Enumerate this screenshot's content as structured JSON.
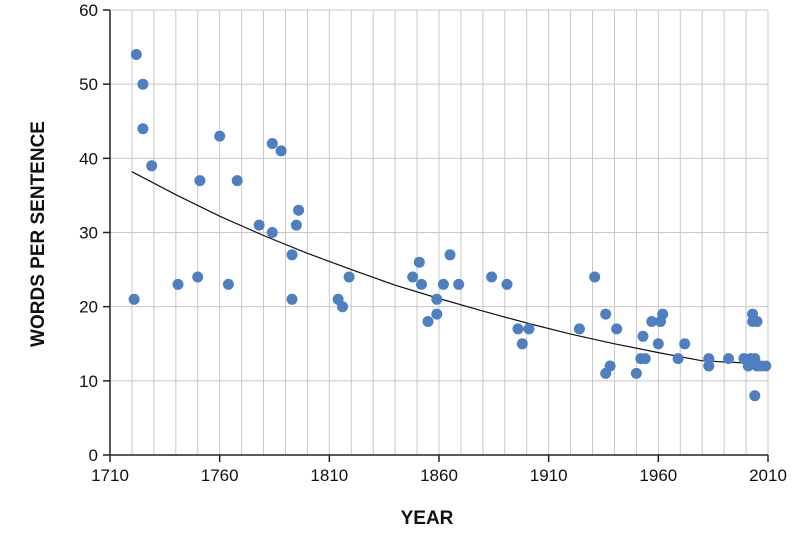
{
  "chart_data": {
    "type": "scatter",
    "title": "",
    "xlabel": "YEAR",
    "ylabel": "WORDS PER SENTENCE",
    "xlim": [
      1710,
      2010
    ],
    "ylim": [
      0,
      60
    ],
    "xticks": [
      "1710",
      "1760",
      "1810",
      "1860",
      "1910",
      "1960",
      "2010"
    ],
    "yticks": [
      "0",
      "10",
      "20",
      "30",
      "40",
      "50",
      "60"
    ],
    "grid": true,
    "legend": "none",
    "point_color": "#4e7fc0",
    "trend_color": "#111111",
    "series": [
      {
        "points": [
          [
            1721,
            21
          ],
          [
            1722,
            54
          ],
          [
            1725,
            50
          ],
          [
            1725,
            44
          ],
          [
            1729,
            39
          ],
          [
            1741,
            23
          ],
          [
            1750,
            24
          ],
          [
            1751,
            37
          ],
          [
            1760,
            43
          ],
          [
            1764,
            23
          ],
          [
            1768,
            37
          ],
          [
            1778,
            31
          ],
          [
            1784,
            42
          ],
          [
            1784,
            30
          ],
          [
            1788,
            41
          ],
          [
            1793,
            21
          ],
          [
            1793,
            27
          ],
          [
            1795,
            31
          ],
          [
            1796,
            33
          ],
          [
            1814,
            21
          ],
          [
            1816,
            20
          ],
          [
            1819,
            24
          ],
          [
            1848,
            24
          ],
          [
            1851,
            26
          ],
          [
            1852,
            23
          ],
          [
            1855,
            18
          ],
          [
            1859,
            19
          ],
          [
            1859,
            21
          ],
          [
            1862,
            23
          ],
          [
            1865,
            27
          ],
          [
            1869,
            23
          ],
          [
            1884,
            24
          ],
          [
            1891,
            23
          ],
          [
            1896,
            17
          ],
          [
            1898,
            15
          ],
          [
            1901,
            17
          ],
          [
            1924,
            17
          ],
          [
            1931,
            24
          ],
          [
            1936,
            19
          ],
          [
            1936,
            11
          ],
          [
            1938,
            12
          ],
          [
            1941,
            17
          ],
          [
            1950,
            11
          ],
          [
            1952,
            13
          ],
          [
            1953,
            16
          ],
          [
            1954,
            13
          ],
          [
            1957,
            18
          ],
          [
            1960,
            15
          ],
          [
            1961,
            18
          ],
          [
            1962,
            19
          ],
          [
            1969,
            13
          ],
          [
            1972,
            15
          ],
          [
            1983,
            13
          ],
          [
            1983,
            12
          ],
          [
            1992,
            13
          ],
          [
            1999,
            13
          ],
          [
            2001,
            12
          ],
          [
            2002,
            13
          ],
          [
            2003,
            19
          ],
          [
            2003,
            18
          ],
          [
            2004,
            13
          ],
          [
            2004,
            8
          ],
          [
            2005,
            12
          ],
          [
            2005,
            18
          ],
          [
            2007,
            12
          ],
          [
            2009,
            12
          ]
        ]
      }
    ],
    "trendline": {
      "type": "exponential",
      "x": [
        1720,
        1740,
        1760,
        1780,
        1800,
        1820,
        1840,
        1860,
        1880,
        1900,
        1920,
        1940,
        1960,
        1980,
        2000,
        2010
      ],
      "y": [
        38.2,
        35.1,
        32.2,
        29.6,
        27.2,
        25.0,
        22.9,
        21.1,
        19.4,
        17.8,
        16.3,
        15.0,
        13.8,
        12.7,
        12.4,
        12.3
      ]
    }
  }
}
